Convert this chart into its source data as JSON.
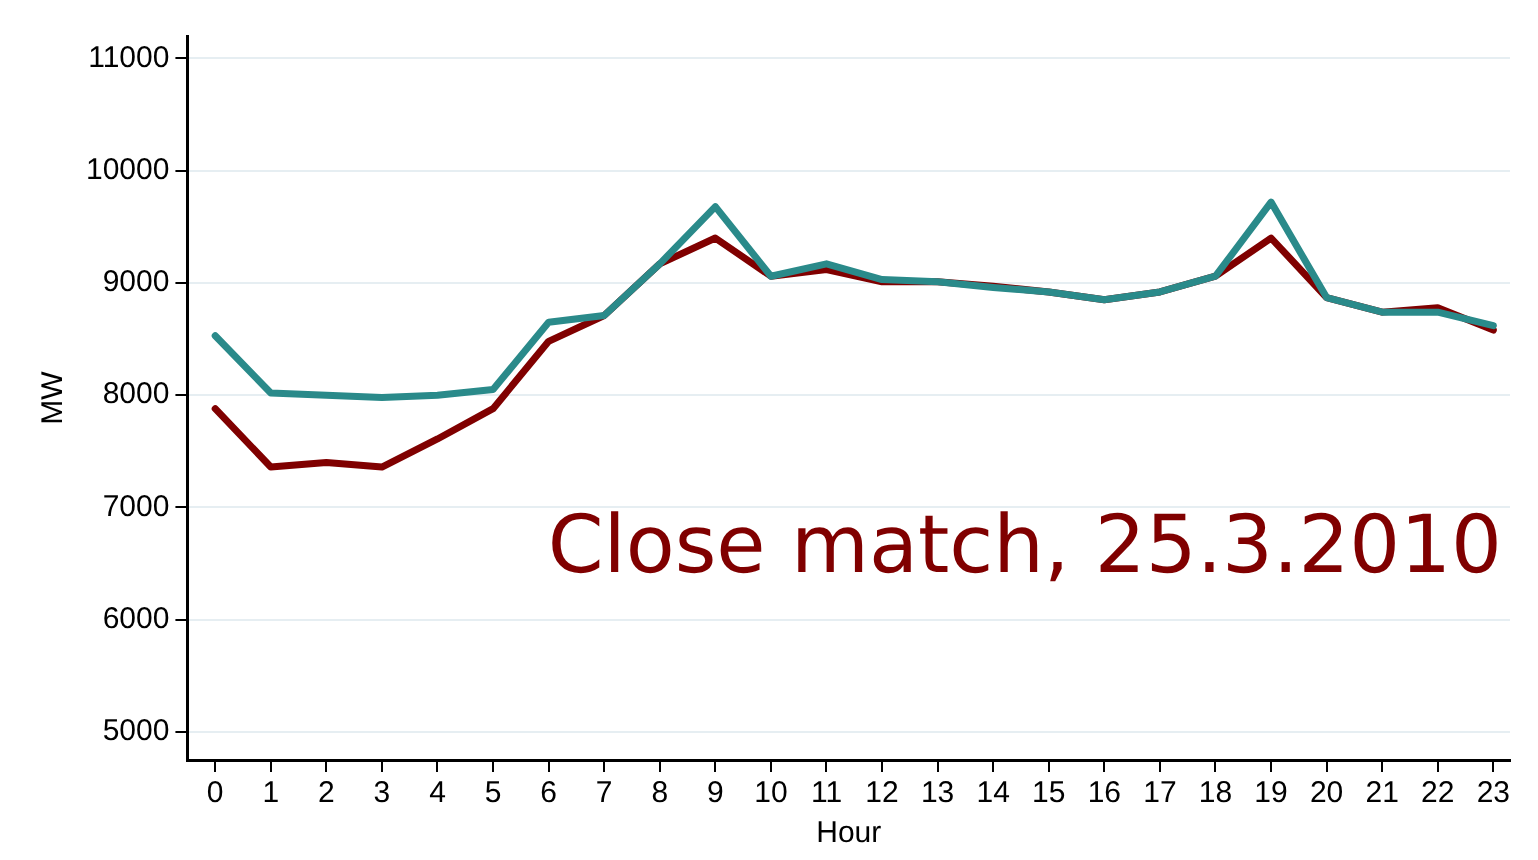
{
  "chart_data": {
    "type": "line",
    "xlabel": "Hour",
    "ylabel": "MW",
    "x": [
      0,
      1,
      2,
      3,
      4,
      5,
      6,
      7,
      8,
      9,
      10,
      11,
      12,
      13,
      14,
      15,
      16,
      17,
      18,
      19,
      20,
      21,
      22,
      23
    ],
    "series": [
      {
        "color": "#800000",
        "values": [
          7880,
          7360,
          7400,
          7360,
          7610,
          7880,
          8480,
          8710,
          9170,
          9400,
          9060,
          9120,
          9010,
          9010,
          8970,
          8920,
          8850,
          8920,
          9060,
          9400,
          8870,
          8740,
          8780,
          8580
        ]
      },
      {
        "color": "#2a8a8a",
        "values": [
          8530,
          8020,
          8000,
          7980,
          8000,
          8050,
          8650,
          8710,
          9170,
          9680,
          9060,
          9170,
          9030,
          9010,
          8960,
          8920,
          8850,
          8920,
          9060,
          9720,
          8870,
          8740,
          8740,
          8620
        ]
      }
    ],
    "xlim": [
      -0.5,
      23.3
    ],
    "xticks": [
      0,
      1,
      2,
      3,
      4,
      5,
      6,
      7,
      8,
      9,
      10,
      11,
      12,
      13,
      14,
      15,
      16,
      17,
      18,
      19,
      20,
      21,
      22,
      23
    ],
    "ylim": [
      4750,
      11200
    ],
    "yticks": [
      5000,
      6000,
      7000,
      8000,
      9000,
      10000,
      11000
    ],
    "grid": "y",
    "legend": false,
    "marker": "none",
    "line_style": "solid",
    "annotations": [
      "Close match, 25.3.2010"
    ]
  }
}
